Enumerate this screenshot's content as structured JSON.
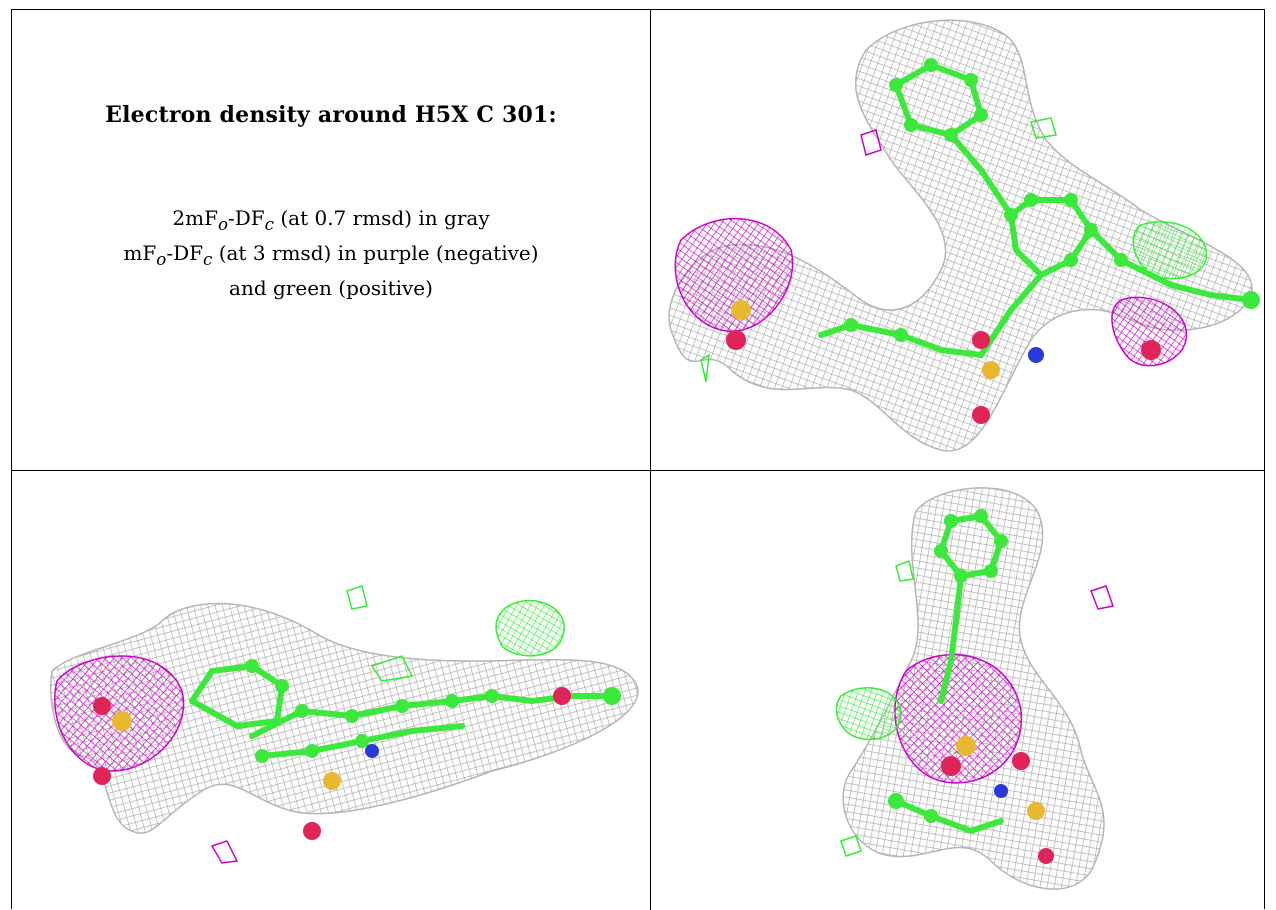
{
  "panel_text": {
    "title": "Electron density around H5X C 301:",
    "line1_main": "2mF",
    "line1_sub_o": "o",
    "line1_mid": "-DF",
    "line1_sub_c": "c",
    "line1_rest": " (at 0.7 rmsd) in gray",
    "line2_main": "mF",
    "line2_sub_o": "o",
    "line2_mid": "-DF",
    "line2_sub_c": "c",
    "line2_rest": " (at 3 rmsd) in purple (negative)",
    "line3": "and green (positive)"
  },
  "colors": {
    "mesh_2fofc": "#a8a8a8",
    "mesh_negative": "#cc00cc",
    "mesh_positive": "#33ee33",
    "carbon": "#3ce83c",
    "oxygen": "#e0245a",
    "sulfur": "#e8b830",
    "nitrogen": "#2a3ad8"
  },
  "views": [
    {
      "name": "view-top-right",
      "icon": "electron-density-render-icon"
    },
    {
      "name": "view-bottom-left",
      "icon": "electron-density-render-icon"
    },
    {
      "name": "view-bottom-right",
      "icon": "electron-density-render-icon"
    }
  ]
}
